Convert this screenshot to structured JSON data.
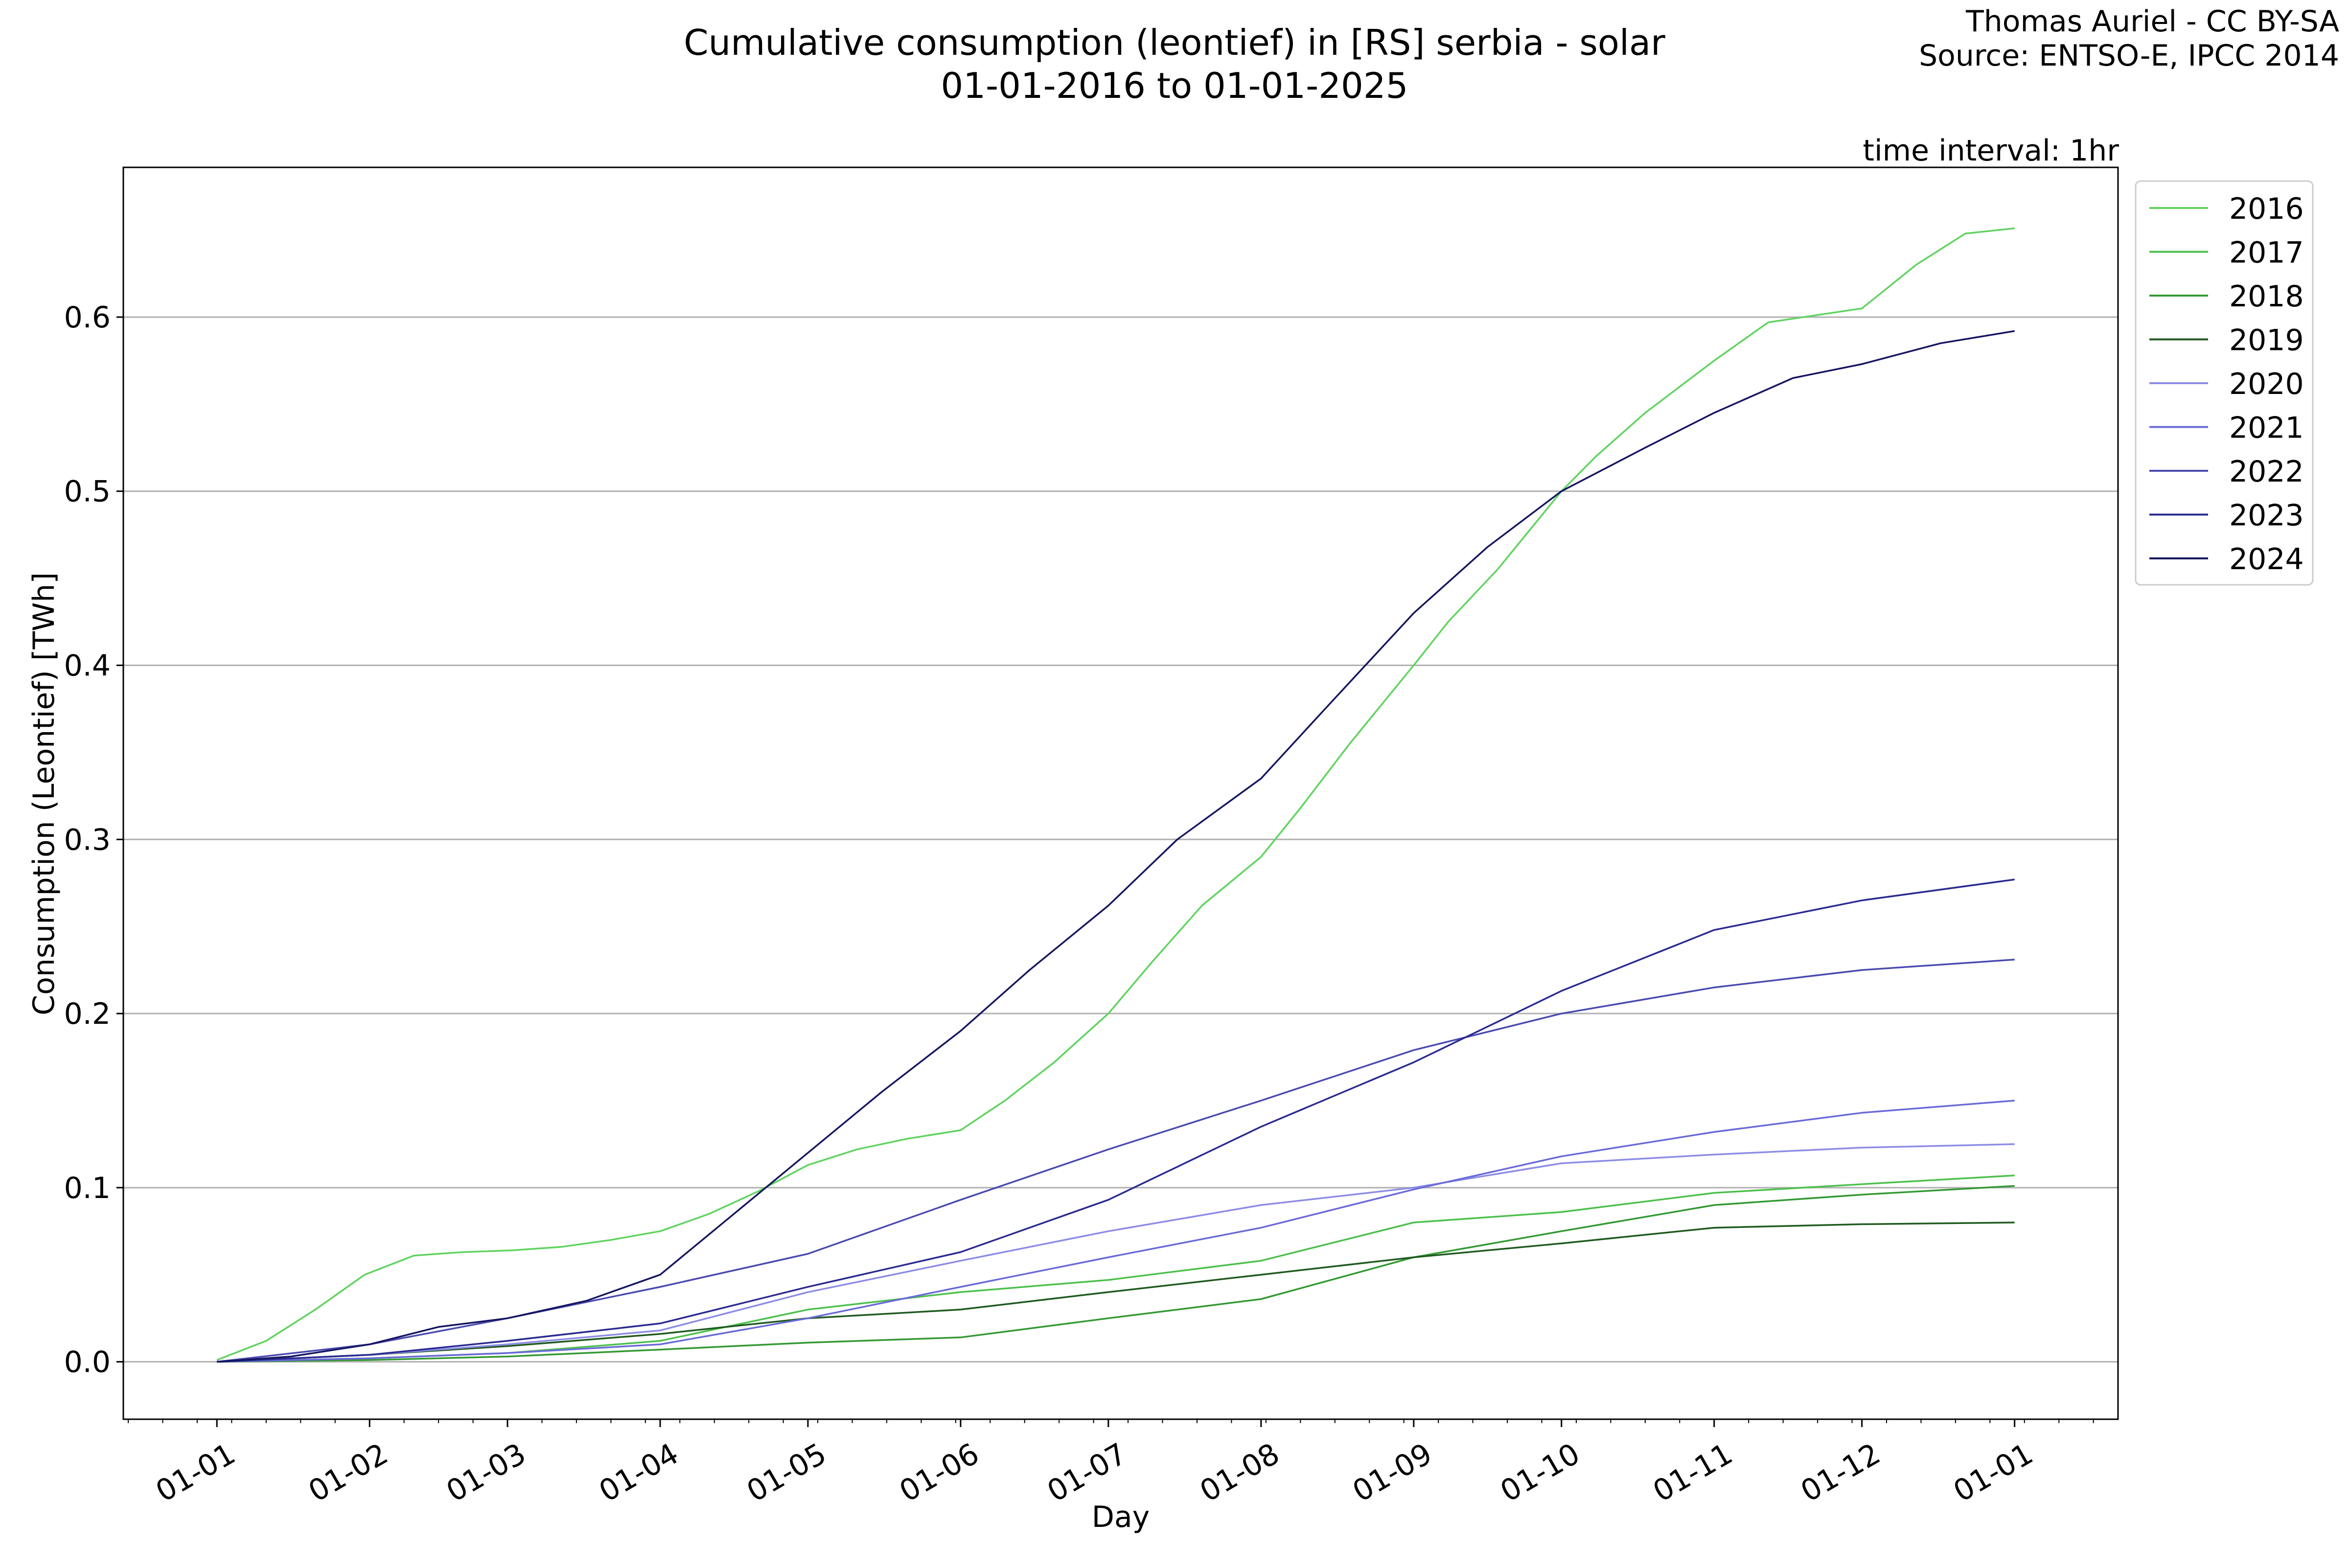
{
  "header": {
    "title_line1": "Cumulative consumption (leontief) in [RS] serbia - solar",
    "title_line2": "01-01-2016 to 01-01-2025",
    "credit_line1": "Thomas Auriel - CC BY-SA",
    "credit_line2": "Source: ENTSO-E, IPCC 2014",
    "interval_note": "time interval: 1hr"
  },
  "chart_data": {
    "type": "line",
    "title": "Cumulative consumption (leontief) in [RS] serbia - solar",
    "subtitle": "01-01-2016 to 01-01-2025",
    "xlabel": "Day",
    "ylabel": "Consumption (Leontief) [TWh]",
    "x_ticks": [
      "01-01",
      "01-02",
      "01-03",
      "01-04",
      "01-05",
      "01-06",
      "01-07",
      "01-08",
      "01-09",
      "01-10",
      "01-11",
      "01-12",
      "01-01"
    ],
    "x_tick_days": [
      0,
      31,
      59,
      90,
      120,
      151,
      181,
      212,
      243,
      273,
      304,
      334,
      365
    ],
    "y_ticks": [
      0.0,
      0.1,
      0.2,
      0.3,
      0.4,
      0.5,
      0.6
    ],
    "xlim": [
      -19,
      386
    ],
    "ylim": [
      -0.033,
      0.686
    ],
    "grid": "horizontal",
    "legend_position": "outside-right-top",
    "x_unit": "day of year",
    "series": [
      {
        "name": "2016",
        "color": "#5fd35f",
        "x": [
          0,
          10,
          20,
          30,
          40,
          50,
          60,
          70,
          80,
          90,
          100,
          110,
          120,
          130,
          140,
          151,
          160,
          170,
          181,
          190,
          200,
          212,
          220,
          230,
          243,
          250,
          260,
          273,
          280,
          290,
          304,
          315,
          334,
          345,
          355,
          365
        ],
        "y": [
          0.001,
          0.012,
          0.03,
          0.05,
          0.061,
          0.063,
          0.064,
          0.066,
          0.07,
          0.075,
          0.085,
          0.098,
          0.113,
          0.122,
          0.128,
          0.133,
          0.15,
          0.172,
          0.2,
          0.23,
          0.262,
          0.29,
          0.318,
          0.355,
          0.4,
          0.425,
          0.455,
          0.5,
          0.52,
          0.545,
          0.575,
          0.597,
          0.605,
          0.63,
          0.648,
          0.651
        ]
      },
      {
        "name": "2017",
        "color": "#4cc04c",
        "x": [
          0,
          31,
          59,
          90,
          120,
          151,
          181,
          212,
          243,
          273,
          304,
          334,
          365
        ],
        "y": [
          0.0,
          0.002,
          0.005,
          0.012,
          0.03,
          0.04,
          0.047,
          0.058,
          0.08,
          0.086,
          0.097,
          0.102,
          0.107
        ]
      },
      {
        "name": "2018",
        "color": "#339933",
        "x": [
          0,
          31,
          59,
          90,
          120,
          151,
          181,
          212,
          243,
          273,
          304,
          334,
          365
        ],
        "y": [
          0.0,
          0.001,
          0.003,
          0.007,
          0.011,
          0.014,
          0.025,
          0.036,
          0.06,
          0.075,
          0.09,
          0.096,
          0.101
        ]
      },
      {
        "name": "2019",
        "color": "#1f5a1f",
        "x": [
          0,
          31,
          59,
          90,
          120,
          151,
          181,
          212,
          243,
          273,
          304,
          334,
          365
        ],
        "y": [
          0.0,
          0.004,
          0.009,
          0.016,
          0.025,
          0.03,
          0.04,
          0.05,
          0.06,
          0.068,
          0.077,
          0.079,
          0.08
        ]
      },
      {
        "name": "2020",
        "color": "#8c8ce6",
        "x": [
          0,
          31,
          59,
          90,
          120,
          151,
          181,
          212,
          243,
          273,
          304,
          334,
          365
        ],
        "y": [
          0.0,
          0.004,
          0.01,
          0.018,
          0.04,
          0.058,
          0.075,
          0.09,
          0.1,
          0.114,
          0.119,
          0.123,
          0.125
        ]
      },
      {
        "name": "2021",
        "color": "#6a6ad8",
        "x": [
          0,
          31,
          59,
          90,
          120,
          151,
          181,
          212,
          243,
          273,
          304,
          334,
          365
        ],
        "y": [
          0.0,
          0.002,
          0.005,
          0.01,
          0.025,
          0.043,
          0.06,
          0.077,
          0.099,
          0.118,
          0.132,
          0.143,
          0.15
        ]
      },
      {
        "name": "2022",
        "color": "#4a4ab0",
        "x": [
          0,
          31,
          59,
          90,
          120,
          151,
          181,
          212,
          243,
          273,
          304,
          334,
          365
        ],
        "y": [
          0.0,
          0.01,
          0.025,
          0.043,
          0.062,
          0.093,
          0.122,
          0.15,
          0.179,
          0.2,
          0.215,
          0.225,
          0.231
        ]
      },
      {
        "name": "2023",
        "color": "#2a2a90",
        "x": [
          0,
          31,
          59,
          90,
          120,
          151,
          181,
          212,
          243,
          273,
          304,
          334,
          365
        ],
        "y": [
          0.0,
          0.004,
          0.012,
          0.022,
          0.043,
          0.063,
          0.093,
          0.135,
          0.172,
          0.213,
          0.248,
          0.265,
          0.277
        ]
      },
      {
        "name": "2024",
        "color": "#151560",
        "x": [
          0,
          15,
          31,
          45,
          59,
          75,
          90,
          105,
          120,
          135,
          151,
          165,
          181,
          195,
          212,
          225,
          243,
          258,
          273,
          290,
          304,
          320,
          334,
          350,
          365
        ],
        "y": [
          0.0,
          0.003,
          0.01,
          0.02,
          0.025,
          0.035,
          0.05,
          0.085,
          0.12,
          0.155,
          0.19,
          0.225,
          0.262,
          0.3,
          0.335,
          0.375,
          0.43,
          0.468,
          0.5,
          0.525,
          0.545,
          0.565,
          0.573,
          0.585,
          0.592
        ]
      }
    ]
  }
}
